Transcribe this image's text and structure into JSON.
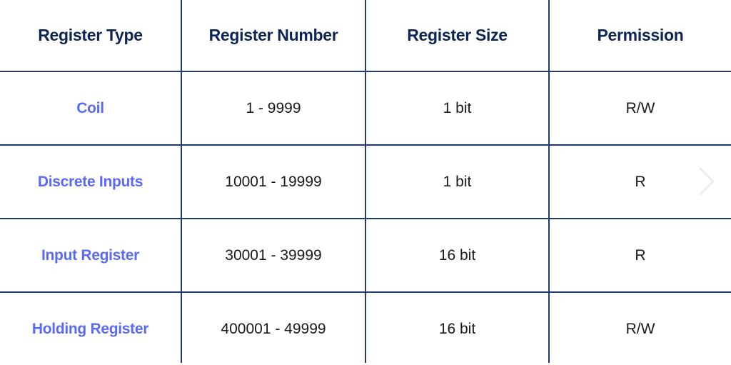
{
  "table": {
    "headers": [
      "Register Type",
      "Register Number",
      "Register Size",
      "Permission"
    ],
    "rows": [
      {
        "type": "Coil",
        "number": "1 - 9999",
        "size": "1 bit",
        "permission": "R/W"
      },
      {
        "type": "Discrete Inputs",
        "number": "10001 - 19999",
        "size": "1 bit",
        "permission": "R"
      },
      {
        "type": "Input Register",
        "number": "30001 - 39999",
        "size": "16 bit",
        "permission": "R"
      },
      {
        "type": "Holding Register",
        "number": "400001 - 49999",
        "size": "16 bit",
        "permission": "R/W"
      }
    ]
  },
  "colors": {
    "header_text": "#0d2454",
    "type_text": "#5a6af5",
    "grid": "#1f3a6e"
  },
  "icons": {
    "next": "chevron-right-icon"
  }
}
